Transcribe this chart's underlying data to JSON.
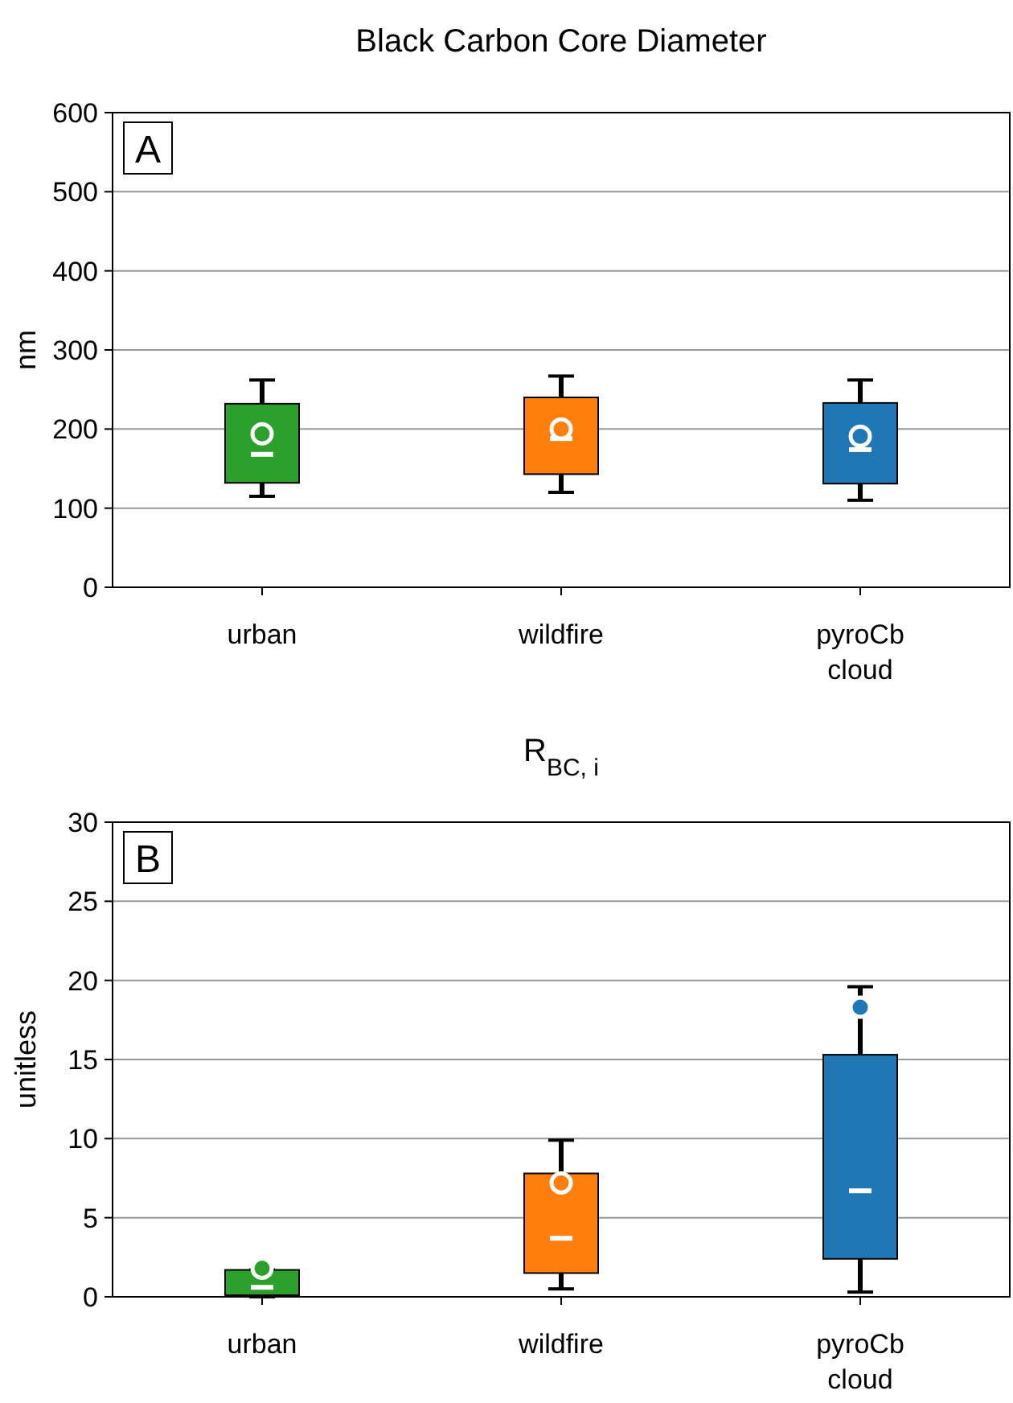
{
  "chart_data": [
    {
      "type": "box",
      "title": "Black Carbon Core Diameter",
      "ylabel": "nm",
      "annotations": [
        "A"
      ],
      "categories": [
        "urban",
        "wildfire",
        "pyroCb cloud"
      ],
      "colors": [
        "#2ca02c",
        "#ff7f0e",
        "#1f77b4"
      ],
      "boxes": [
        {
          "low": 115,
          "q1": 132,
          "median": 168,
          "q3": 232,
          "high": 262,
          "mean": 194
        },
        {
          "low": 120,
          "q1": 143,
          "median": 188,
          "q3": 240,
          "high": 267,
          "mean": 200
        },
        {
          "low": 110,
          "q1": 131,
          "median": 174,
          "q3": 233,
          "high": 262,
          "mean": 191
        }
      ],
      "ylim": [
        0,
        600
      ],
      "yticks": [
        0,
        100,
        200,
        300,
        400,
        500,
        600
      ],
      "grid": "y"
    },
    {
      "type": "box",
      "title": "R$_{BC, i}$",
      "ylabel": "unitless",
      "annotations": [
        "B"
      ],
      "categories": [
        "urban",
        "wildfire",
        "pyroCb cloud"
      ],
      "colors": [
        "#2ca02c",
        "#ff7f0e",
        "#1f77b4"
      ],
      "boxes": [
        {
          "low": 0,
          "q1": 0.1,
          "median": 0.6,
          "q3": 1.7,
          "high": 1.7,
          "mean": 1.8
        },
        {
          "low": 0.5,
          "q1": 1.5,
          "median": 3.7,
          "q3": 7.8,
          "high": 9.9,
          "mean": 7.2
        },
        {
          "low": 0.3,
          "q1": 2.4,
          "median": 6.7,
          "q3": 15.3,
          "high": 19.6,
          "mean": 18.3
        }
      ],
      "ylim": [
        0,
        30
      ],
      "yticks": [
        0,
        5,
        10,
        15,
        20,
        25,
        30
      ],
      "grid": "y"
    }
  ]
}
